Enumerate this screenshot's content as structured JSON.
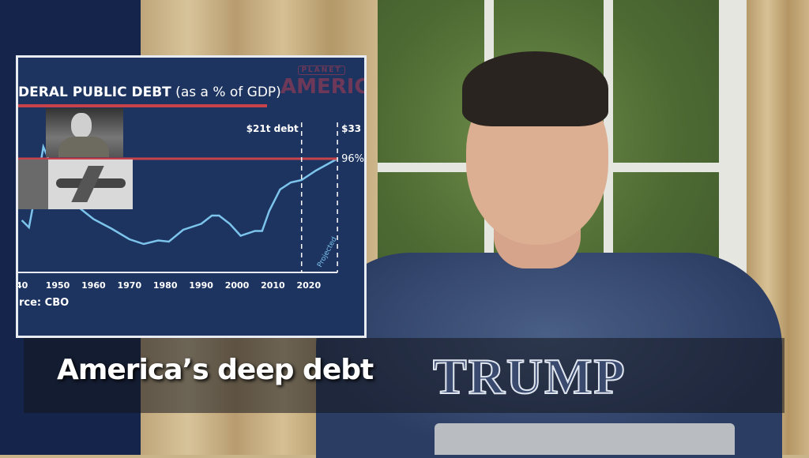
{
  "caption": {
    "text": "America’s deep debt"
  },
  "shirt": {
    "text": "TRUMP"
  },
  "inset": {
    "title_bold": "DERAL PUBLIC DEBT",
    "title_sub": " (as a % of GDP)",
    "logo_small": "PLANET",
    "logo_big": "AMERIC",
    "source": "rce: CBO",
    "colors": {
      "background": "#1d3461",
      "line": "#7cc4ec",
      "reference": "#c8424c",
      "title_rule": "#c8424c"
    }
  },
  "chart_data": {
    "type": "line",
    "title": "DERAL PUBLIC DEBT (as a % of GDP)",
    "x_ticks": [
      "40",
      "1950",
      "1960",
      "1970",
      "1980",
      "1990",
      "2000",
      "2010",
      "2020"
    ],
    "xlim": [
      1940,
      2029
    ],
    "ylim": [
      0,
      100
    ],
    "series": [
      {
        "x": [
          1940,
          1942,
          1944,
          1946,
          1948,
          1950,
          1955,
          1960,
          1965,
          1970,
          1974,
          1978,
          1981,
          1985,
          1990,
          1993,
          1995,
          1998,
          2001,
          2005,
          2007,
          2009,
          2012,
          2015,
          2018,
          2022,
          2028
        ],
        "y": [
          44,
          38,
          70,
          106,
          92,
          80,
          57,
          45,
          37,
          28,
          24,
          27,
          26,
          36,
          41,
          48,
          48,
          41,
          31,
          35,
          35,
          52,
          70,
          76,
          78,
          86,
          96
        ]
      }
    ],
    "annotations": [
      {
        "label": "$21t debt",
        "x": 2018
      },
      {
        "label": "$33",
        "x": 2028
      },
      {
        "label": "96%",
        "y": 96
      },
      {
        "label": "Projected",
        "x": 2023
      }
    ],
    "source": "rce: CBO"
  }
}
